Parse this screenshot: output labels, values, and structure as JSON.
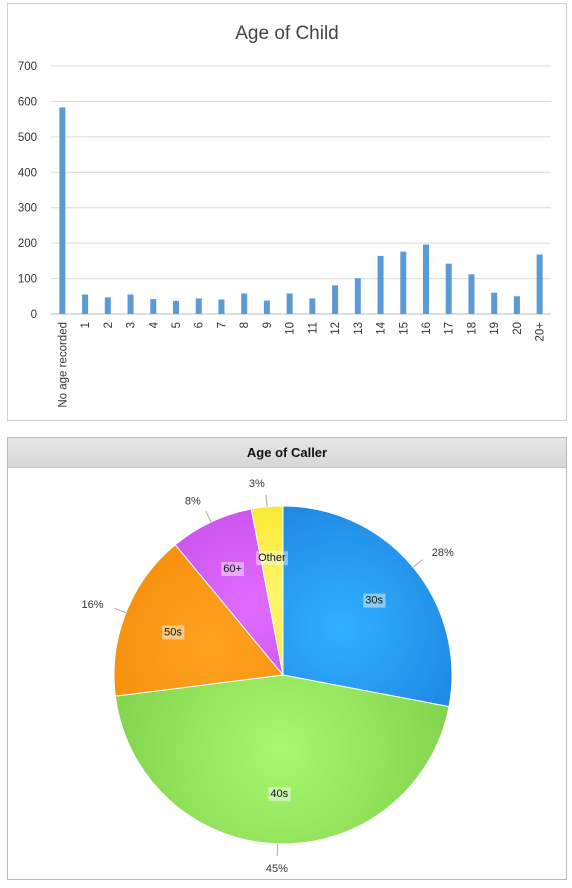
{
  "chart_data": [
    {
      "type": "bar",
      "title": "Age of Child",
      "categories": [
        "No age recorded",
        "1",
        "2",
        "3",
        "4",
        "5",
        "6",
        "7",
        "8",
        "9",
        "10",
        "11",
        "12",
        "13",
        "14",
        "15",
        "16",
        "17",
        "18",
        "19",
        "20",
        "20+"
      ],
      "values": [
        583,
        55,
        47,
        55,
        42,
        37,
        44,
        41,
        58,
        38,
        58,
        44,
        81,
        101,
        164,
        176,
        196,
        142,
        112,
        60,
        50,
        168
      ],
      "ylim": [
        0,
        700
      ],
      "yticks": [
        0,
        100,
        200,
        300,
        400,
        500,
        600,
        700
      ],
      "grid": true,
      "color": "#5b9bd5"
    },
    {
      "type": "pie",
      "title": "Age of Caller",
      "slices": [
        {
          "label": "30s",
          "pct_label": "28%",
          "value": 28,
          "color": "#1778d8",
          "highlight": "#31b0ff"
        },
        {
          "label": "40s",
          "pct_label": "45%",
          "value": 45,
          "color": "#80d14a",
          "highlight": "#a8f770"
        },
        {
          "label": "50s",
          "pct_label": "16%",
          "value": 16,
          "color": "#f08300",
          "highlight": "#ffa320"
        },
        {
          "label": "60+",
          "pct_label": "8%",
          "value": 8,
          "color": "#b742e0",
          "highlight": "#e26bff"
        },
        {
          "label": "Other",
          "pct_label": "3%",
          "value": 3,
          "color": "#f4df00",
          "highlight": "#fff56a"
        }
      ]
    }
  ]
}
